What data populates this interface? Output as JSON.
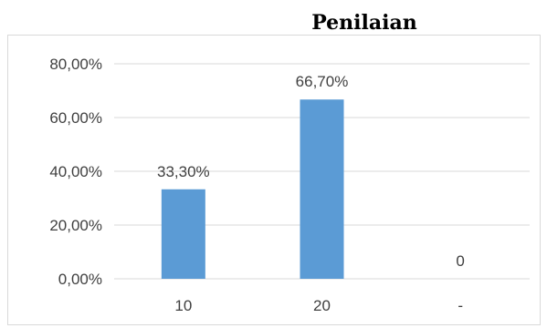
{
  "chart_data": {
    "type": "bar",
    "title": "Penilaian",
    "categories": [
      "10",
      "20",
      "-"
    ],
    "values": [
      33.3,
      66.7,
      0
    ],
    "data_labels": [
      "33,30%",
      "66,70%",
      "0"
    ],
    "ylim": [
      0,
      80
    ],
    "yticks": [
      0,
      20,
      40,
      60,
      80
    ],
    "ytick_labels": [
      "0,00%",
      "20,00%",
      "40,00%",
      "60,00%",
      "80,00%"
    ],
    "xlabel": "",
    "ylabel": "",
    "grid": true,
    "legend": "none",
    "bar_color": "#5b9bd5",
    "grid_color": "#d9d9d9"
  }
}
